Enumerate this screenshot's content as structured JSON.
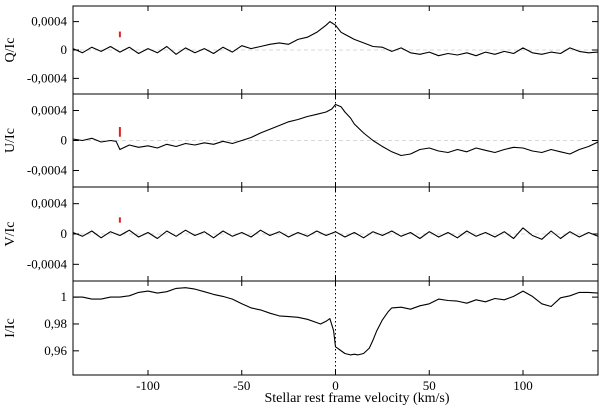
{
  "chart_data": {
    "type": "line",
    "xlabel": "Stellar rest frame velocity (km/s)",
    "xlim": [
      -140,
      140
    ],
    "xticks": [
      -100,
      -50,
      0,
      50,
      100
    ],
    "xtick_labels": [
      "-100",
      "-50",
      "0",
      "50",
      "100"
    ],
    "zero_line_x": 0,
    "panels": [
      {
        "ylabel": "Q/Ic",
        "ylim": [
          -0.00062,
          0.00062
        ],
        "yticks": [
          0.0004,
          0,
          -0.0004
        ],
        "ytick_labels": [
          "0,0004",
          "0",
          "-0,0004"
        ],
        "baseline": 0,
        "error_bar": {
          "x": -115,
          "low": 0.00018,
          "high": 0.00026
        },
        "series": [
          {
            "x": [
              -140,
              -135,
              -130,
              -125,
              -120,
              -115,
              -110,
              -105,
              -100,
              -95,
              -90,
              -85,
              -80,
              -75,
              -70,
              -65,
              -60,
              -55,
              -50,
              -45,
              -40,
              -35,
              -30,
              -25,
              -20,
              -15,
              -10,
              -5,
              -3,
              0,
              3,
              5,
              10,
              15,
              20,
              25,
              30,
              35,
              40,
              45,
              50,
              55,
              60,
              65,
              70,
              75,
              80,
              85,
              90,
              95,
              100,
              105,
              110,
              115,
              120,
              125,
              130,
              135,
              140
            ],
            "values": [
              2e-05,
              -4e-05,
              4e-05,
              -2e-05,
              5e-05,
              -3e-05,
              4e-05,
              -5e-05,
              2e-05,
              -4e-05,
              5e-05,
              -6e-05,
              3e-05,
              -4e-05,
              2e-05,
              -5e-05,
              4e-05,
              -3e-05,
              6e-05,
              2e-05,
              5e-05,
              8e-05,
              0.0001,
              8e-05,
              0.00015,
              0.00018,
              0.00025,
              0.00035,
              0.0004,
              0.00035,
              0.00025,
              0.00022,
              0.00015,
              0.0001,
              5e-05,
              4e-05,
              -2e-05,
              3e-05,
              -4e-05,
              -6e-05,
              -3e-05,
              -8e-05,
              -5e-05,
              -7e-05,
              -4e-05,
              -8e-05,
              -3e-05,
              -6e-05,
              -2e-05,
              -5e-05,
              3e-05,
              -4e-05,
              -6e-05,
              -3e-05,
              -5e-05,
              3e-05,
              -2e-05,
              -4e-05,
              -3e-05
            ]
          }
        ]
      },
      {
        "ylabel": "U/Ic",
        "ylim": [
          -0.00062,
          0.00062
        ],
        "yticks": [
          0.0004,
          0,
          -0.0004
        ],
        "ytick_labels": [
          "0,0004",
          "0",
          "-0,0004"
        ],
        "baseline": 0,
        "error_bar": {
          "x": -115,
          "low": 5e-05,
          "high": 0.00018
        },
        "series": [
          {
            "x": [
              -140,
              -135,
              -130,
              -125,
              -120,
              -117,
              -115,
              -110,
              -105,
              -100,
              -95,
              -90,
              -85,
              -80,
              -75,
              -70,
              -65,
              -60,
              -55,
              -50,
              -45,
              -40,
              -35,
              -30,
              -25,
              -20,
              -15,
              -10,
              -5,
              -2,
              0,
              3,
              5,
              8,
              10,
              15,
              20,
              25,
              30,
              35,
              40,
              45,
              50,
              55,
              60,
              65,
              70,
              75,
              80,
              85,
              90,
              95,
              100,
              105,
              110,
              115,
              120,
              125,
              130,
              135,
              140
            ],
            "values": [
              2e-05,
              0.0,
              3e-05,
              -2e-05,
              0.0,
              -1e-05,
              -0.00012,
              -6e-05,
              -9e-05,
              -7e-05,
              -0.0001,
              -5e-05,
              -8e-05,
              -4e-05,
              -6e-05,
              -3e-05,
              -5e-05,
              -1e-05,
              -4e-05,
              0.0,
              4e-05,
              0.0001,
              0.00015,
              0.0002,
              0.00025,
              0.00028,
              0.00032,
              0.00035,
              0.00038,
              0.00042,
              0.00048,
              0.00045,
              0.00038,
              0.0003,
              0.00022,
              0.0001,
              0.0,
              -8e-05,
              -0.00015,
              -0.0002,
              -0.00018,
              -0.00012,
              -0.0001,
              -0.00014,
              -0.00016,
              -0.00012,
              -0.00015,
              -0.0001,
              -0.00013,
              -0.00016,
              -0.00012,
              -9e-05,
              -0.0001,
              -0.00014,
              -0.00016,
              -0.00012,
              -0.00015,
              -0.00018,
              -0.00012,
              -8e-05,
              -2e-05
            ]
          }
        ]
      },
      {
        "ylabel": "V/Ic",
        "ylim": [
          -0.00062,
          0.00062
        ],
        "yticks": [
          0.0004,
          0,
          -0.0004
        ],
        "ytick_labels": [
          "0,0004",
          "0",
          "-0,0004"
        ],
        "baseline": 0,
        "error_bar": {
          "x": -115,
          "low": 0.00015,
          "high": 0.00022
        },
        "series": [
          {
            "x": [
              -140,
              -135,
              -130,
              -125,
              -120,
              -115,
              -110,
              -105,
              -100,
              -95,
              -90,
              -85,
              -80,
              -75,
              -70,
              -65,
              -60,
              -55,
              -50,
              -45,
              -40,
              -35,
              -30,
              -25,
              -20,
              -15,
              -10,
              -5,
              0,
              5,
              10,
              15,
              20,
              25,
              30,
              35,
              40,
              45,
              50,
              55,
              60,
              65,
              70,
              75,
              80,
              85,
              90,
              95,
              100,
              105,
              110,
              115,
              120,
              125,
              130,
              135,
              140
            ],
            "values": [
              2e-05,
              -3e-05,
              4e-05,
              -5e-05,
              3e-05,
              -2e-05,
              5e-05,
              -4e-05,
              2e-05,
              -6e-05,
              4e-05,
              -3e-05,
              5e-05,
              -2e-05,
              3e-05,
              -5e-05,
              4e-05,
              -3e-05,
              2e-05,
              -4e-05,
              5e-05,
              -2e-05,
              3e-05,
              -4e-05,
              2e-05,
              -3e-05,
              4e-05,
              -2e-05,
              3e-05,
              -4e-05,
              2e-05,
              -5e-05,
              3e-05,
              -2e-05,
              4e-05,
              -3e-05,
              2e-05,
              -6e-05,
              3e-05,
              -4e-05,
              2e-05,
              -5e-05,
              4e-05,
              -3e-05,
              2e-05,
              -4e-05,
              3e-05,
              -6e-05,
              8e-05,
              -2e-05,
              -7e-05,
              4e-05,
              -6e-05,
              3e-05,
              -4e-05,
              2e-05,
              -3e-05
            ]
          }
        ]
      },
      {
        "ylabel": "I/Ic",
        "ylim": [
          0.942,
          1.012
        ],
        "yticks": [
          1,
          0.98,
          0.96
        ],
        "ytick_labels": [
          "1",
          "0,98",
          "0,96"
        ],
        "error_bar": null,
        "series": [
          {
            "x": [
              -140,
              -135,
              -130,
              -125,
              -120,
              -115,
              -110,
              -105,
              -100,
              -95,
              -90,
              -85,
              -80,
              -75,
              -70,
              -65,
              -60,
              -55,
              -50,
              -45,
              -40,
              -35,
              -30,
              -25,
              -20,
              -15,
              -10,
              -8,
              -5,
              -3,
              -1,
              0,
              1,
              2,
              5,
              8,
              10,
              12,
              15,
              18,
              20,
              22,
              25,
              28,
              30,
              35,
              40,
              45,
              50,
              55,
              60,
              65,
              70,
              75,
              80,
              85,
              90,
              95,
              100,
              105,
              110,
              115,
              120,
              125,
              130,
              135,
              140
            ],
            "values": [
              1.0,
              1.0,
              0.9985,
              0.9985,
              1.0,
              1.0,
              1.001,
              1.0035,
              1.0045,
              1.003,
              1.004,
              1.0065,
              1.007,
              1.006,
              1.004,
              1.002,
              1.0005,
              0.9985,
              0.995,
              0.992,
              0.9905,
              0.988,
              0.986,
              0.9855,
              0.985,
              0.9835,
              0.981,
              0.98,
              0.982,
              0.984,
              0.975,
              0.963,
              0.962,
              0.961,
              0.958,
              0.957,
              0.9575,
              0.957,
              0.958,
              0.962,
              0.968,
              0.975,
              0.983,
              0.989,
              0.992,
              0.9925,
              0.991,
              0.9935,
              0.995,
              0.9985,
              0.9975,
              0.997,
              0.9955,
              0.998,
              0.9965,
              0.999,
              0.998,
              1.0005,
              1.0045,
              1.0005,
              0.995,
              0.993,
              0.9995,
              1.001,
              1.0035,
              1.0035,
              1.003
            ]
          }
        ]
      }
    ]
  }
}
